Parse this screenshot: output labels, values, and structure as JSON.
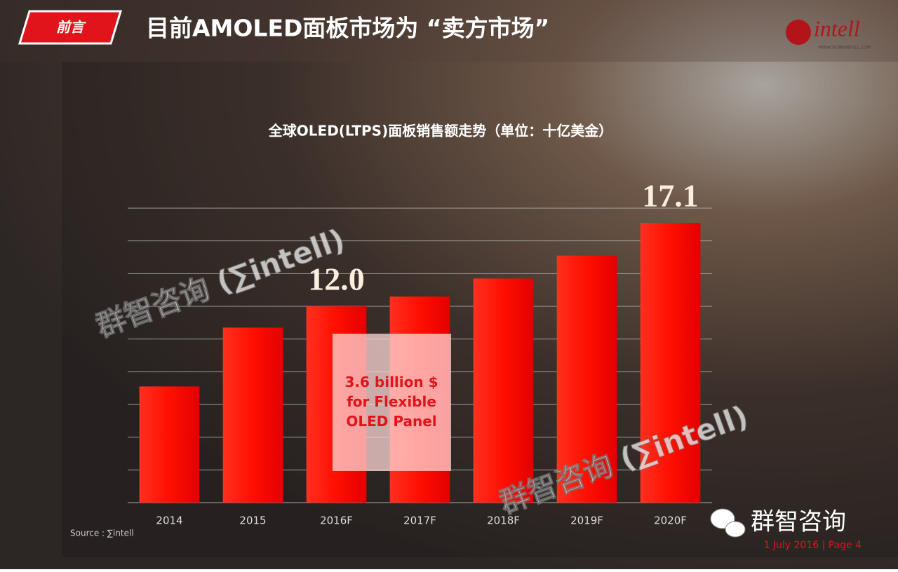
{
  "header": {
    "tag": "前言",
    "title": "目前AMOLED面板市场为 “卖方市场”",
    "logo": "intell",
    "logo_url": "WWW.SIGMAINTELL.COM"
  },
  "chart_data": {
    "type": "bar",
    "title": "全球OLED(LTPS)面板销售额走势（单位：十亿美金）",
    "categories": [
      "2014",
      "2015",
      "2016F",
      "2017F",
      "2018F",
      "2019F",
      "2020F"
    ],
    "values": [
      7.1,
      10.7,
      12.0,
      12.6,
      13.7,
      15.1,
      17.1
    ],
    "value_labels": [
      null,
      null,
      "12.0",
      null,
      null,
      null,
      "17.1"
    ],
    "color": "#ff1a0a",
    "ylim": [
      0,
      18
    ],
    "yticks": [
      0,
      2,
      4,
      6,
      8,
      10,
      12,
      14,
      16,
      18
    ],
    "grid": true,
    "tick_labels": false,
    "annotation": [
      "3.6 billion $",
      "for Flexible",
      "OLED Panel"
    ],
    "source": "Source : ∑intell"
  },
  "watermarks": [
    "群智咨询 (∑intell)",
    "群智咨询 (∑intell)"
  ],
  "footer": {
    "brand": "群智咨询",
    "date_page": "1 July 2016 | Page 4"
  }
}
